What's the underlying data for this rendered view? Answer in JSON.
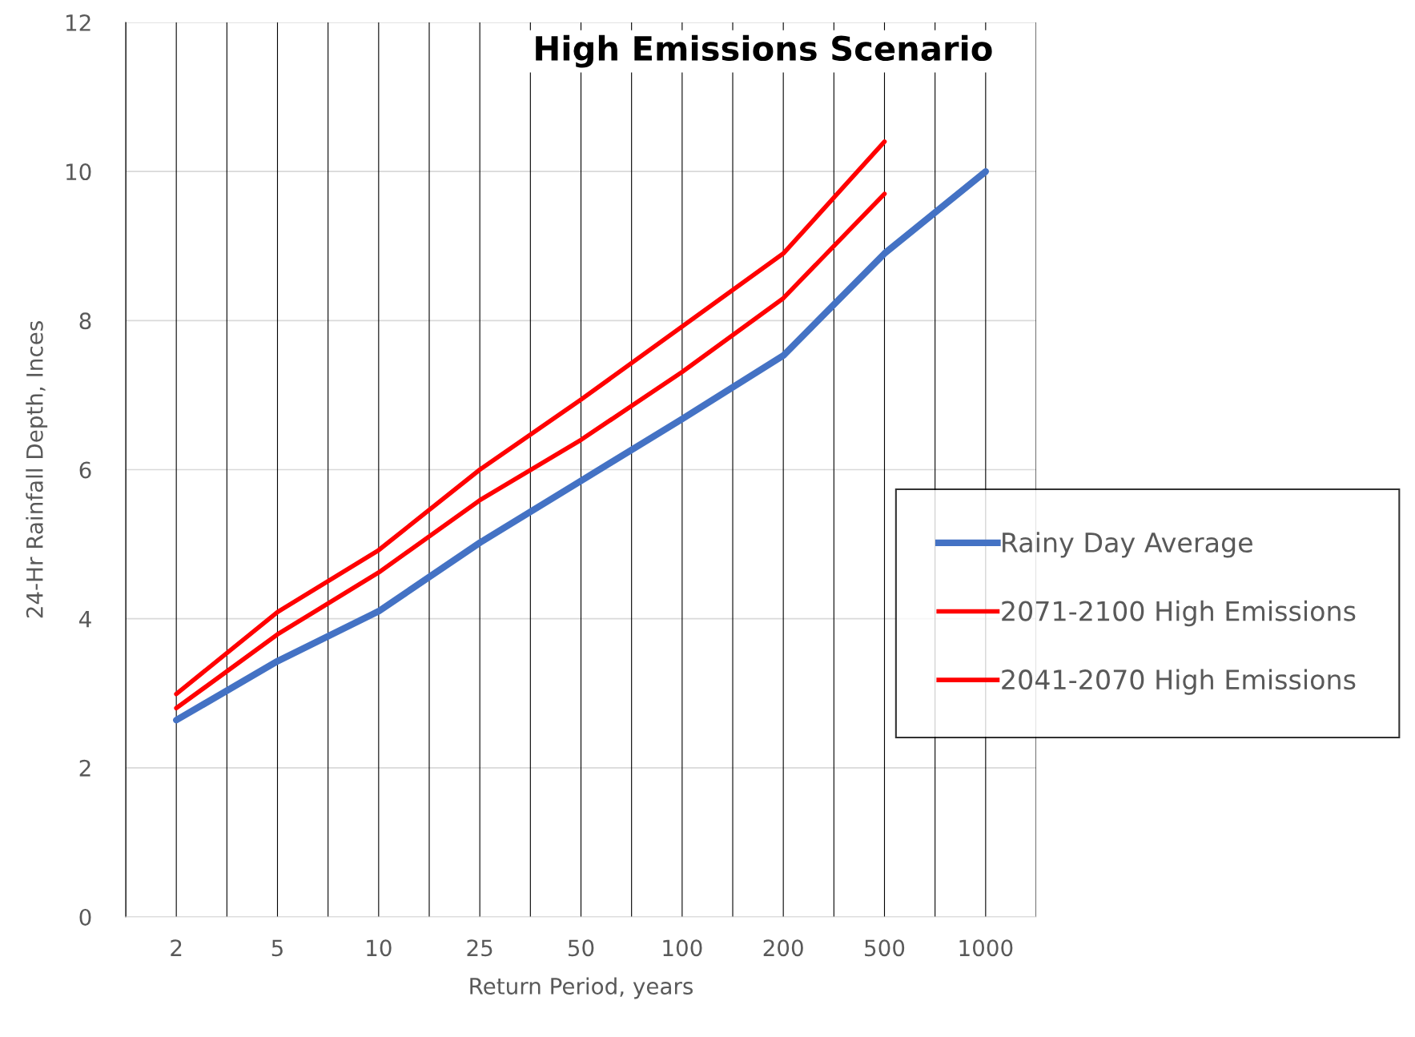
{
  "chart_data": {
    "type": "line",
    "title": "High Emissions Scenario",
    "xlabel": "Return Period, years",
    "ylabel": "24-Hr Rainfall Depth, Inces",
    "categories": [
      "2",
      "5",
      "10",
      "25",
      "50",
      "100",
      "200",
      "500",
      "1000"
    ],
    "series": [
      {
        "name": "Rainy Day Average",
        "color": "#4472c4",
        "values": [
          2.64,
          3.43,
          4.1,
          5.02,
          5.85,
          6.68,
          7.53,
          8.9,
          10.0
        ]
      },
      {
        "name": "2071-2100 High Emissions",
        "color": "#ff0000",
        "values": [
          2.99,
          4.09,
          4.92,
          6.0,
          6.94,
          7.92,
          8.9,
          10.4,
          null
        ]
      },
      {
        "name": "2041-2070 High Emissions",
        "color": "#ff0000",
        "values": [
          2.8,
          3.79,
          4.62,
          5.59,
          6.4,
          7.31,
          8.3,
          9.7,
          null
        ]
      }
    ],
    "ylim": [
      0,
      12
    ],
    "yticks": [
      0,
      2,
      4,
      6,
      8,
      10,
      12
    ],
    "grid": true,
    "legend": "right",
    "marker": "none",
    "line_style": "solid"
  }
}
